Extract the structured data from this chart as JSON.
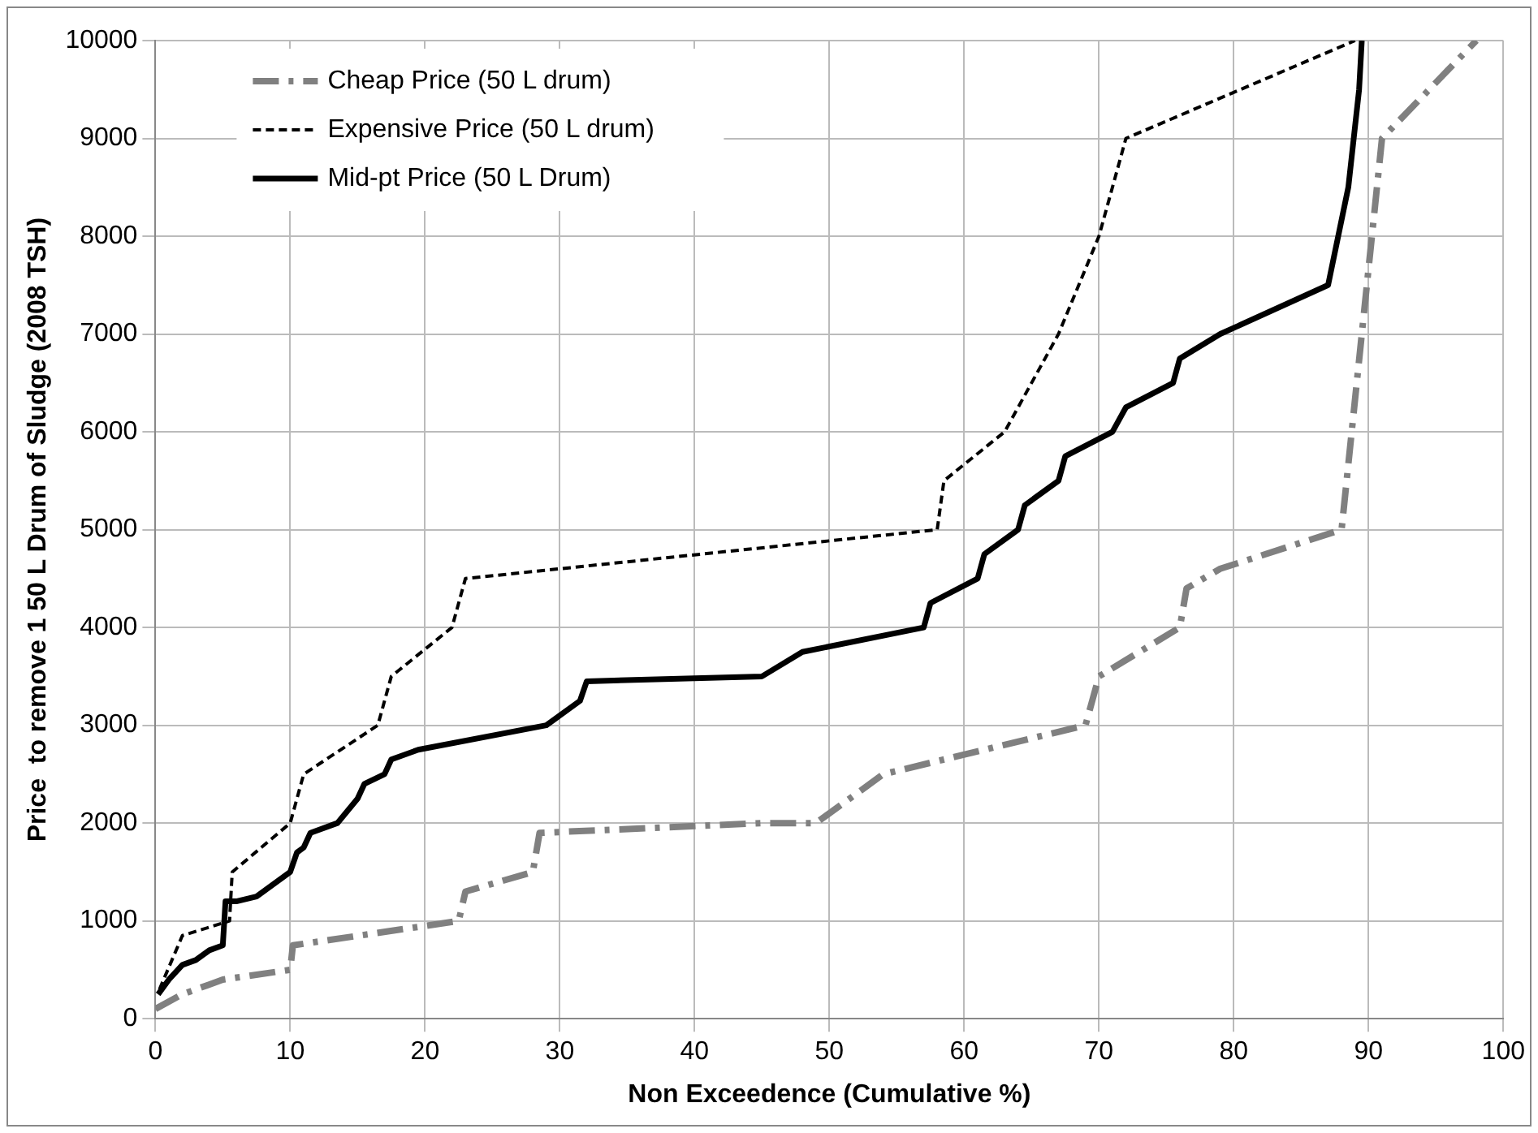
{
  "chart_data": {
    "type": "line",
    "xlabel": "Non Exceedence (Cumulative %)",
    "ylabel": "Price  to remove 1 50 L Drum of Sludge (2008 TSH)",
    "xlim": [
      0,
      100
    ],
    "xticks": [
      0,
      10,
      20,
      30,
      40,
      50,
      60,
      70,
      80,
      90,
      100
    ],
    "ylim": [
      0,
      10000
    ],
    "yticks": [
      0,
      1000,
      2000,
      3000,
      4000,
      5000,
      6000,
      7000,
      8000,
      9000,
      10000
    ],
    "grid": true,
    "legend": "top left",
    "marker": "none",
    "series": [
      {
        "name": "Cheap Price (50 L drum)",
        "color": "#808080",
        "line_style": "dashed",
        "x": [
          0,
          2,
          5,
          10,
          10.2,
          22.5,
          23,
          28,
          28.5,
          45,
          49,
          54,
          69,
          70,
          76,
          76.5,
          79,
          88,
          89.5,
          91,
          98
        ],
        "values": [
          100,
          250,
          400,
          500,
          750,
          1000,
          1300,
          1500,
          1900,
          2000,
          2000,
          2500,
          3000,
          3500,
          4000,
          4400,
          4600,
          5000,
          7000,
          9000,
          10000
        ]
      },
      {
        "name": "Expensive Price (50 L drum)",
        "color": "#000000",
        "line_style": "dotted",
        "x": [
          0.3,
          2,
          5.5,
          5.7,
          10,
          11,
          16.5,
          17.5,
          22,
          23,
          58,
          58.5,
          63,
          67,
          70,
          72,
          89
        ],
        "values": [
          300,
          850,
          1000,
          1500,
          2000,
          2500,
          3000,
          3500,
          4000,
          4500,
          5000,
          5500,
          6000,
          7000,
          8000,
          9000,
          10000
        ]
      },
      {
        "name": "Mid-pt Price (50 L Drum)",
        "color": "#000000",
        "line_style": "solid",
        "x": [
          0.2,
          1,
          2,
          3,
          4,
          5,
          5.2,
          6,
          7.5,
          10,
          10.5,
          11,
          11.5,
          13.5,
          15,
          15.5,
          17,
          17.5,
          19.5,
          29,
          31.5,
          32,
          45,
          48,
          57,
          57.5,
          61,
          61.5,
          64,
          64.5,
          67,
          67.5,
          71,
          72,
          75.5,
          76,
          79,
          87,
          88.5,
          89.3,
          89.5
        ],
        "values": [
          250,
          400,
          550,
          600,
          700,
          750,
          1200,
          1200,
          1250,
          1500,
          1700,
          1750,
          1900,
          2000,
          2250,
          2400,
          2500,
          2650,
          2750,
          3000,
          3250,
          3450,
          3500,
          3750,
          4000,
          4250,
          4500,
          4750,
          5000,
          5250,
          5500,
          5750,
          6000,
          6250,
          6500,
          6750,
          7000,
          7500,
          8500,
          9500,
          10000
        ]
      }
    ]
  }
}
